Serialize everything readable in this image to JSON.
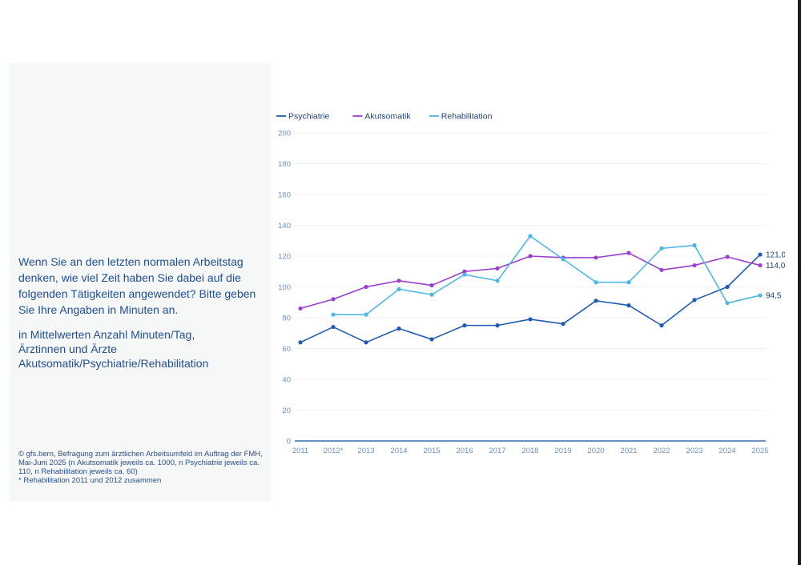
{
  "panel": {
    "question": "Wenn Sie an den letzten normalen Arbeitstag denken, wie viel Zeit haben Sie dabei auf die folgenden Tätigkeiten angewendet? Bitte geben Sie Ihre Angaben in Minuten an.",
    "measure_lines": [
      "in Mittelwerten Anzahl Minuten/Tag,",
      "Ärztinnen und Ärzte",
      "Akutsomatik/Psychiatrie/Rehabilitation"
    ],
    "source": "© gfs.bern, Befragung zum ärztlichen Arbeitsumfeld im Auftrag der FMH, Mai-Juni 2025 (n Akutsomatik jeweils ca. 1000, n Psychiatrie jeweils ca. 110, n Rehabilitation jeweils ca. 60)",
    "footnote": "* Rehabilitation 2011 und 2012 zusammen"
  },
  "chart_data": {
    "type": "line",
    "categories": [
      "2011",
      "2012*",
      "2013",
      "2014",
      "2015",
      "2016",
      "2017",
      "2018",
      "2019",
      "2020",
      "2021",
      "2022",
      "2023",
      "2024",
      "2025"
    ],
    "ylim": [
      0,
      200
    ],
    "yticks": [
      0,
      20,
      40,
      60,
      80,
      100,
      120,
      140,
      160,
      180,
      200
    ],
    "grid": true,
    "legend_position": "top-left",
    "series": [
      {
        "name": "Psychiatrie",
        "color": "#1f5bb5",
        "values": [
          64,
          74,
          64,
          73,
          66,
          75,
          75,
          79,
          76,
          91,
          88,
          75,
          91.5,
          100,
          121.0
        ],
        "end_label": "121,0"
      },
      {
        "name": "Akutsomatik",
        "color": "#9b3fcf",
        "values": [
          86,
          92,
          100,
          104,
          101,
          110,
          112,
          120,
          119,
          119,
          122,
          111,
          114,
          119.5,
          114.0
        ],
        "end_label": "114,0"
      },
      {
        "name": "Rehabilitation",
        "color": "#4fb6e8",
        "values": [
          null,
          82,
          82,
          98.5,
          95,
          108,
          104,
          133,
          118,
          103,
          103,
          125,
          127,
          89.5,
          94.5
        ],
        "end_label": "94,5"
      }
    ]
  }
}
